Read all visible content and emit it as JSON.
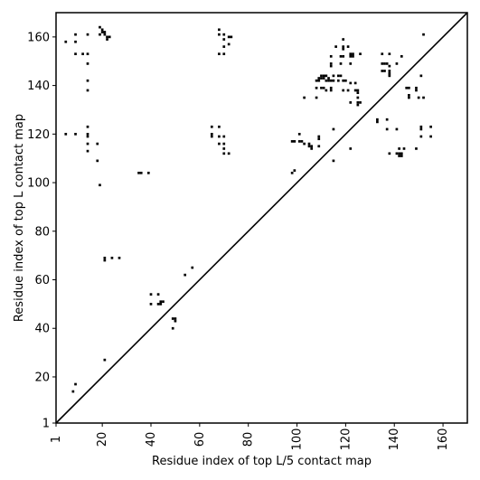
{
  "chart_data": {
    "type": "scatter",
    "marker": "square",
    "title": "",
    "xlabel": "Residue index of top L/5 contact map",
    "ylabel": "Residue index of top L contact map",
    "xlim": [
      1,
      170
    ],
    "ylim": [
      1,
      170
    ],
    "xticks": [
      1,
      20,
      40,
      60,
      80,
      100,
      120,
      140,
      160
    ],
    "yticks": [
      1,
      20,
      40,
      60,
      80,
      100,
      120,
      140,
      160
    ],
    "diagonal": true,
    "grid": false,
    "colors": {
      "marker": "#000000",
      "axis": "#000000",
      "background": "#ffffff"
    },
    "points": [
      [
        5,
        158
      ],
      [
        9,
        161
      ],
      [
        9,
        158
      ],
      [
        9,
        153
      ],
      [
        12,
        153
      ],
      [
        14,
        153
      ],
      [
        14,
        161
      ],
      [
        14,
        149
      ],
      [
        14,
        142
      ],
      [
        14,
        138
      ],
      [
        19,
        164
      ],
      [
        19,
        161
      ],
      [
        20,
        163
      ],
      [
        20,
        162
      ],
      [
        21,
        162
      ],
      [
        21,
        161
      ],
      [
        22,
        160
      ],
      [
        22,
        159
      ],
      [
        23,
        160
      ],
      [
        5,
        120
      ],
      [
        9,
        120
      ],
      [
        14,
        123
      ],
      [
        14,
        120
      ],
      [
        14,
        119
      ],
      [
        14,
        116
      ],
      [
        14,
        113
      ],
      [
        18,
        116
      ],
      [
        18,
        109
      ],
      [
        19,
        99
      ],
      [
        35,
        104
      ],
      [
        36,
        104
      ],
      [
        39,
        104
      ],
      [
        21,
        69
      ],
      [
        21,
        68
      ],
      [
        24,
        69
      ],
      [
        27,
        69
      ],
      [
        21,
        27
      ],
      [
        8,
        14
      ],
      [
        9,
        17
      ],
      [
        40,
        54
      ],
      [
        40,
        50
      ],
      [
        43,
        54
      ],
      [
        43,
        50
      ],
      [
        44,
        51
      ],
      [
        44,
        50
      ],
      [
        45,
        51
      ],
      [
        49,
        44
      ],
      [
        50,
        44
      ],
      [
        50,
        43
      ],
      [
        49,
        40
      ],
      [
        54,
        62
      ],
      [
        57,
        65
      ],
      [
        68,
        163
      ],
      [
        68,
        161
      ],
      [
        70,
        161
      ],
      [
        72,
        160
      ],
      [
        72,
        157
      ],
      [
        73,
        160
      ],
      [
        70,
        159
      ],
      [
        70,
        156
      ],
      [
        68,
        153
      ],
      [
        70,
        153
      ],
      [
        65,
        123
      ],
      [
        65,
        120
      ],
      [
        65,
        119
      ],
      [
        68,
        123
      ],
      [
        68,
        119
      ],
      [
        70,
        119
      ],
      [
        68,
        116
      ],
      [
        70,
        116
      ],
      [
        70,
        114
      ],
      [
        70,
        112
      ],
      [
        72,
        112
      ],
      [
        98,
        104
      ],
      [
        99,
        105
      ],
      [
        98,
        117
      ],
      [
        99,
        117
      ],
      [
        101,
        117
      ],
      [
        102,
        117
      ],
      [
        103,
        116
      ],
      [
        101,
        120
      ],
      [
        105,
        116
      ],
      [
        105,
        115
      ],
      [
        106,
        115
      ],
      [
        106,
        114
      ],
      [
        109,
        119
      ],
      [
        109,
        118
      ],
      [
        109,
        115
      ],
      [
        103,
        135
      ],
      [
        108,
        135
      ],
      [
        115,
        109
      ],
      [
        108,
        142
      ],
      [
        109,
        142
      ],
      [
        109,
        143
      ],
      [
        110,
        143
      ],
      [
        110,
        144
      ],
      [
        111,
        143
      ],
      [
        111,
        144
      ],
      [
        112,
        144
      ],
      [
        112,
        142
      ],
      [
        113,
        143
      ],
      [
        113,
        142
      ],
      [
        114,
        142
      ],
      [
        108,
        139
      ],
      [
        110,
        139
      ],
      [
        111,
        139
      ],
      [
        112,
        138
      ],
      [
        114,
        139
      ],
      [
        114,
        138
      ],
      [
        115,
        142
      ],
      [
        115,
        144
      ],
      [
        117,
        144
      ],
      [
        118,
        144
      ],
      [
        117,
        142
      ],
      [
        119,
        142
      ],
      [
        120,
        142
      ],
      [
        119,
        138
      ],
      [
        121,
        138
      ],
      [
        124,
        138
      ],
      [
        125,
        138
      ],
      [
        125,
        137
      ],
      [
        122,
        133
      ],
      [
        125,
        133
      ],
      [
        125,
        132
      ],
      [
        126,
        133
      ],
      [
        125,
        135
      ],
      [
        118,
        149
      ],
      [
        114,
        148
      ],
      [
        114,
        149
      ],
      [
        114,
        152
      ],
      [
        116,
        156
      ],
      [
        118,
        152
      ],
      [
        119,
        152
      ],
      [
        119,
        155
      ],
      [
        119,
        156
      ],
      [
        119,
        159
      ],
      [
        121,
        156
      ],
      [
        122,
        153
      ],
      [
        122,
        152
      ],
      [
        123,
        153
      ],
      [
        123,
        152
      ],
      [
        126,
        153
      ],
      [
        122,
        149
      ],
      [
        115,
        122
      ],
      [
        122,
        114
      ],
      [
        122,
        141
      ],
      [
        124,
        141
      ],
      [
        133,
        126
      ],
      [
        133,
        125
      ],
      [
        135,
        149
      ],
      [
        135,
        146
      ],
      [
        136,
        146
      ],
      [
        136,
        149
      ],
      [
        135,
        153
      ],
      [
        137,
        149
      ],
      [
        138,
        148
      ],
      [
        138,
        146
      ],
      [
        138,
        145
      ],
      [
        138,
        144
      ],
      [
        141,
        149
      ],
      [
        138,
        153
      ],
      [
        143,
        152
      ],
      [
        137,
        126
      ],
      [
        137,
        122
      ],
      [
        141,
        122
      ],
      [
        138,
        112
      ],
      [
        141,
        112
      ],
      [
        142,
        112
      ],
      [
        142,
        111
      ],
      [
        143,
        111
      ],
      [
        143,
        112
      ],
      [
        142,
        114
      ],
      [
        144,
        114
      ],
      [
        145,
        139
      ],
      [
        146,
        139
      ],
      [
        146,
        136
      ],
      [
        146,
        135
      ],
      [
        149,
        139
      ],
      [
        149,
        138
      ],
      [
        150,
        135
      ],
      [
        152,
        135
      ],
      [
        151,
        123
      ],
      [
        151,
        122
      ],
      [
        151,
        119
      ],
      [
        155,
        123
      ],
      [
        155,
        119
      ],
      [
        149,
        114
      ],
      [
        151,
        144
      ],
      [
        152,
        161
      ]
    ]
  }
}
